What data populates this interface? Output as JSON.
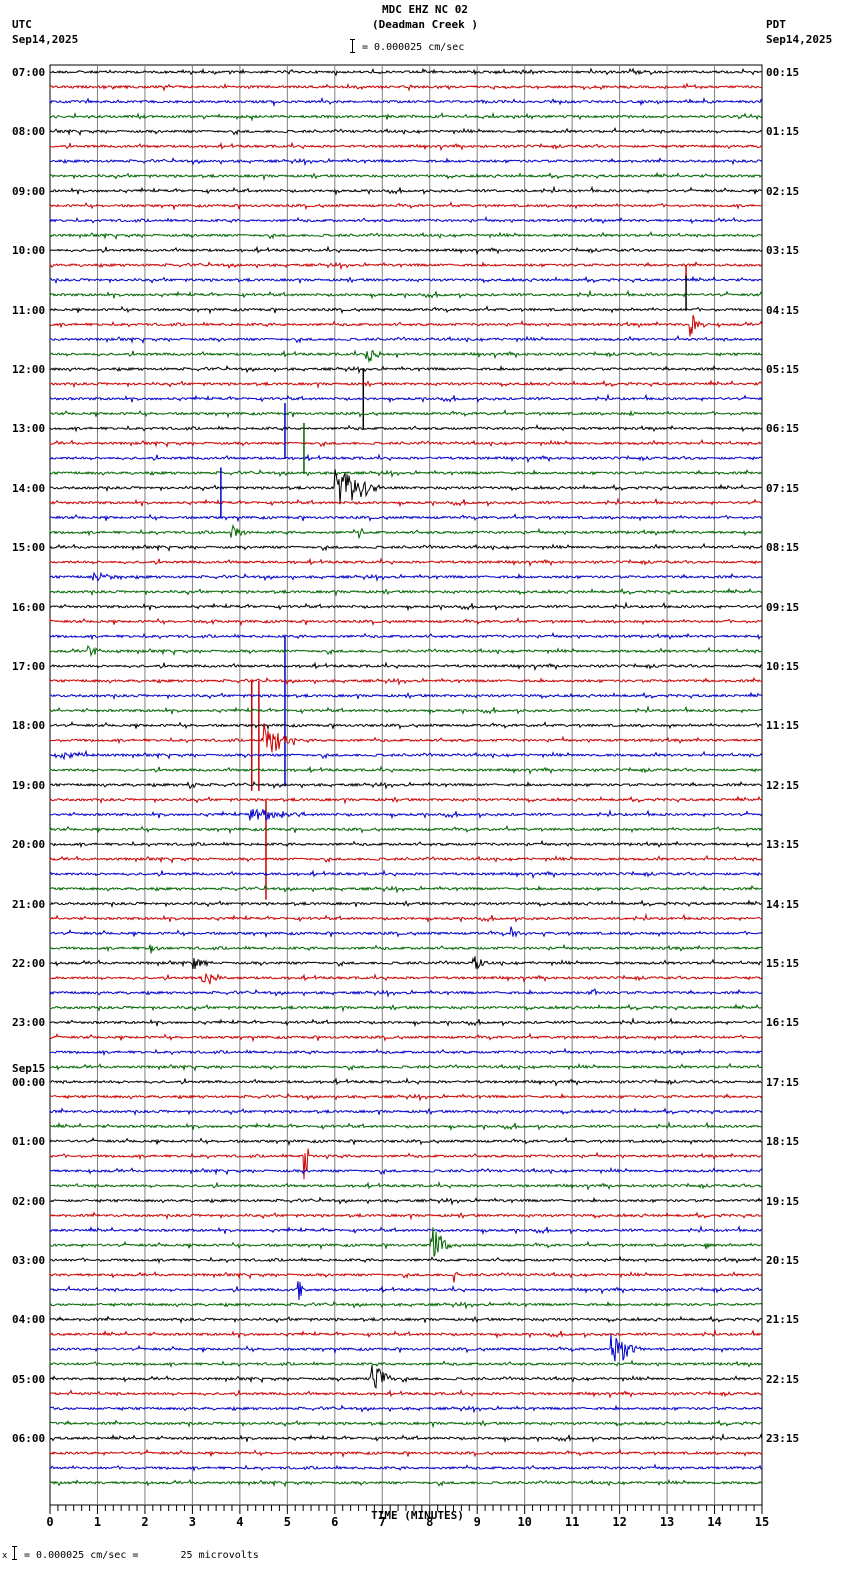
{
  "header": {
    "station": "MDC EHZ NC 02",
    "location": "(Deadman Creek )",
    "left_zone": "UTC",
    "left_date": "Sep14,2025",
    "right_zone": "PDT",
    "right_date": "Sep14,2025",
    "scale_text": "= 0.000025 cm/sec"
  },
  "footer": {
    "scale_text": "= 0.000025 cm/sec =       25 microvolts",
    "prefix": "x"
  },
  "colors": {
    "trace": [
      "#000000",
      "#cc0000",
      "#0000cc",
      "#006600"
    ],
    "grid": "#808080",
    "axis": "#000000"
  },
  "chart_data": {
    "type": "line",
    "title": "MDC EHZ NC 02 (Deadman Creek )",
    "subtitle": "= 0.000025 cm/sec",
    "xlabel": "TIME (MINUTES)",
    "ylabel": "",
    "xlim": [
      0,
      15
    ],
    "x_ticks": [
      0,
      1,
      2,
      3,
      4,
      5,
      6,
      7,
      8,
      9,
      10,
      11,
      12,
      13,
      14,
      15
    ],
    "minor_tick_interval_sec": 10,
    "traces_per_hour": 4,
    "trace_minutes": 15,
    "n_traces": 96,
    "grid": true,
    "left_axis_labels": [
      {
        "row": 0,
        "text": "07:00"
      },
      {
        "row": 4,
        "text": "08:00"
      },
      {
        "row": 8,
        "text": "09:00"
      },
      {
        "row": 12,
        "text": "10:00"
      },
      {
        "row": 16,
        "text": "11:00"
      },
      {
        "row": 20,
        "text": "12:00"
      },
      {
        "row": 24,
        "text": "13:00"
      },
      {
        "row": 28,
        "text": "14:00"
      },
      {
        "row": 32,
        "text": "15:00"
      },
      {
        "row": 36,
        "text": "16:00"
      },
      {
        "row": 40,
        "text": "17:00"
      },
      {
        "row": 44,
        "text": "18:00"
      },
      {
        "row": 48,
        "text": "19:00"
      },
      {
        "row": 52,
        "text": "20:00"
      },
      {
        "row": 56,
        "text": "21:00"
      },
      {
        "row": 60,
        "text": "22:00"
      },
      {
        "row": 64,
        "text": "23:00"
      },
      {
        "row": 68,
        "text": "00:00",
        "date": "Sep15"
      },
      {
        "row": 72,
        "text": "01:00"
      },
      {
        "row": 76,
        "text": "02:00"
      },
      {
        "row": 80,
        "text": "03:00"
      },
      {
        "row": 84,
        "text": "04:00"
      },
      {
        "row": 88,
        "text": "05:00"
      },
      {
        "row": 92,
        "text": "06:00"
      }
    ],
    "right_axis_labels": [
      {
        "row": 0,
        "text": "00:15"
      },
      {
        "row": 4,
        "text": "01:15"
      },
      {
        "row": 8,
        "text": "02:15"
      },
      {
        "row": 12,
        "text": "03:15"
      },
      {
        "row": 16,
        "text": "04:15"
      },
      {
        "row": 20,
        "text": "05:15"
      },
      {
        "row": 24,
        "text": "06:15"
      },
      {
        "row": 28,
        "text": "07:15"
      },
      {
        "row": 32,
        "text": "08:15"
      },
      {
        "row": 36,
        "text": "09:15"
      },
      {
        "row": 40,
        "text": "10:15"
      },
      {
        "row": 44,
        "text": "11:15"
      },
      {
        "row": 48,
        "text": "12:15"
      },
      {
        "row": 52,
        "text": "13:15"
      },
      {
        "row": 56,
        "text": "14:15"
      },
      {
        "row": 60,
        "text": "15:15"
      },
      {
        "row": 64,
        "text": "16:15"
      },
      {
        "row": 68,
        "text": "17:15"
      },
      {
        "row": 72,
        "text": "18:15"
      },
      {
        "row": 76,
        "text": "19:15"
      },
      {
        "row": 80,
        "text": "20:15"
      },
      {
        "row": 84,
        "text": "21:15"
      },
      {
        "row": 88,
        "text": "22:15"
      },
      {
        "row": 92,
        "text": "23:15"
      }
    ],
    "events": [
      {
        "row": 0,
        "minute": 9.9,
        "amp": 4,
        "dur": 0.4,
        "type": "burst"
      },
      {
        "row": 13,
        "minute": 13.4,
        "amp": -16,
        "dur": 0,
        "type": "spike"
      },
      {
        "row": 16,
        "minute": 13.4,
        "amp": 34,
        "dur": 0,
        "type": "spike"
      },
      {
        "row": 17,
        "minute": 13.45,
        "amp": 14,
        "dur": 0.3,
        "type": "burst"
      },
      {
        "row": 20,
        "minute": 6.6,
        "amp": -60,
        "dur": 0,
        "type": "spike"
      },
      {
        "row": 19,
        "minute": 6.65,
        "amp": 10,
        "dur": 0.3,
        "type": "burst"
      },
      {
        "row": 23,
        "minute": 12.2,
        "amp": 5,
        "dur": 0.1,
        "type": "burst"
      },
      {
        "row": 26,
        "minute": 4.95,
        "amp": 55,
        "dur": 0,
        "type": "spike"
      },
      {
        "row": 27,
        "minute": 5.35,
        "amp": 50,
        "dur": 0,
        "type": "spike"
      },
      {
        "row": 28,
        "minute": 6.0,
        "amp": 20,
        "dur": 1.0,
        "type": "burst"
      },
      {
        "row": 30,
        "minute": 3.6,
        "amp": 50,
        "dur": 0,
        "type": "spike"
      },
      {
        "row": 31,
        "minute": 3.8,
        "amp": 9,
        "dur": 0.3,
        "type": "burst"
      },
      {
        "row": 31,
        "minute": 6.5,
        "amp": 7,
        "dur": 0.1,
        "type": "burst"
      },
      {
        "row": 34,
        "minute": 0.9,
        "amp": 4,
        "dur": 0.7,
        "type": "burst"
      },
      {
        "row": 37,
        "minute": 3.3,
        "amp": 3,
        "dur": 0.2,
        "type": "burst"
      },
      {
        "row": 39,
        "minute": 0.8,
        "amp": 6,
        "dur": 0.3,
        "type": "burst"
      },
      {
        "row": 38,
        "minute": 4.95,
        "amp": -150,
        "dur": 0,
        "type": "spike"
      },
      {
        "row": 41,
        "minute": 4.25,
        "amp": -110,
        "dur": 0,
        "type": "spike"
      },
      {
        "row": 41,
        "minute": 4.4,
        "amp": -110,
        "dur": 0,
        "type": "spike"
      },
      {
        "row": 45,
        "minute": 4.5,
        "amp": 18,
        "dur": 0.6,
        "type": "burst"
      },
      {
        "row": 46,
        "minute": 0.2,
        "amp": 4,
        "dur": 1.0,
        "type": "burst"
      },
      {
        "row": 48,
        "minute": 2.9,
        "amp": 4,
        "dur": 0.3,
        "type": "burst"
      },
      {
        "row": 49,
        "minute": 4.55,
        "amp": -100,
        "dur": 0,
        "type": "spike"
      },
      {
        "row": 50,
        "minute": 4.2,
        "amp": 7,
        "dur": 1.1,
        "type": "burst"
      },
      {
        "row": 58,
        "minute": 9.7,
        "amp": 7,
        "dur": 0.3,
        "type": "burst"
      },
      {
        "row": 59,
        "minute": 2.1,
        "amp": 8,
        "dur": 0.2,
        "type": "burst"
      },
      {
        "row": 60,
        "minute": 3.0,
        "amp": 6,
        "dur": 0.4,
        "type": "burst"
      },
      {
        "row": 60,
        "minute": 8.9,
        "amp": 10,
        "dur": 0.3,
        "type": "burst"
      },
      {
        "row": 61,
        "minute": 3.2,
        "amp": 8,
        "dur": 0.5,
        "type": "burst"
      },
      {
        "row": 62,
        "minute": 11.4,
        "amp": 9,
        "dur": 0.1,
        "type": "burst"
      },
      {
        "row": 73,
        "minute": 5.35,
        "amp": 28,
        "dur": 0.1,
        "type": "burst"
      },
      {
        "row": 79,
        "minute": 8.0,
        "amp": 20,
        "dur": 0.4,
        "type": "burst"
      },
      {
        "row": 81,
        "minute": 8.5,
        "amp": 8,
        "dur": 0.05,
        "type": "burst"
      },
      {
        "row": 82,
        "minute": 5.2,
        "amp": 20,
        "dur": 0.15,
        "type": "burst"
      },
      {
        "row": 86,
        "minute": 11.8,
        "amp": 26,
        "dur": 0.5,
        "type": "burst"
      },
      {
        "row": 88,
        "minute": 6.75,
        "amp": 18,
        "dur": 0.5,
        "type": "burst"
      },
      {
        "row": 79,
        "minute": 13.8,
        "amp": 5,
        "dur": 0.1,
        "type": "burst"
      }
    ]
  }
}
